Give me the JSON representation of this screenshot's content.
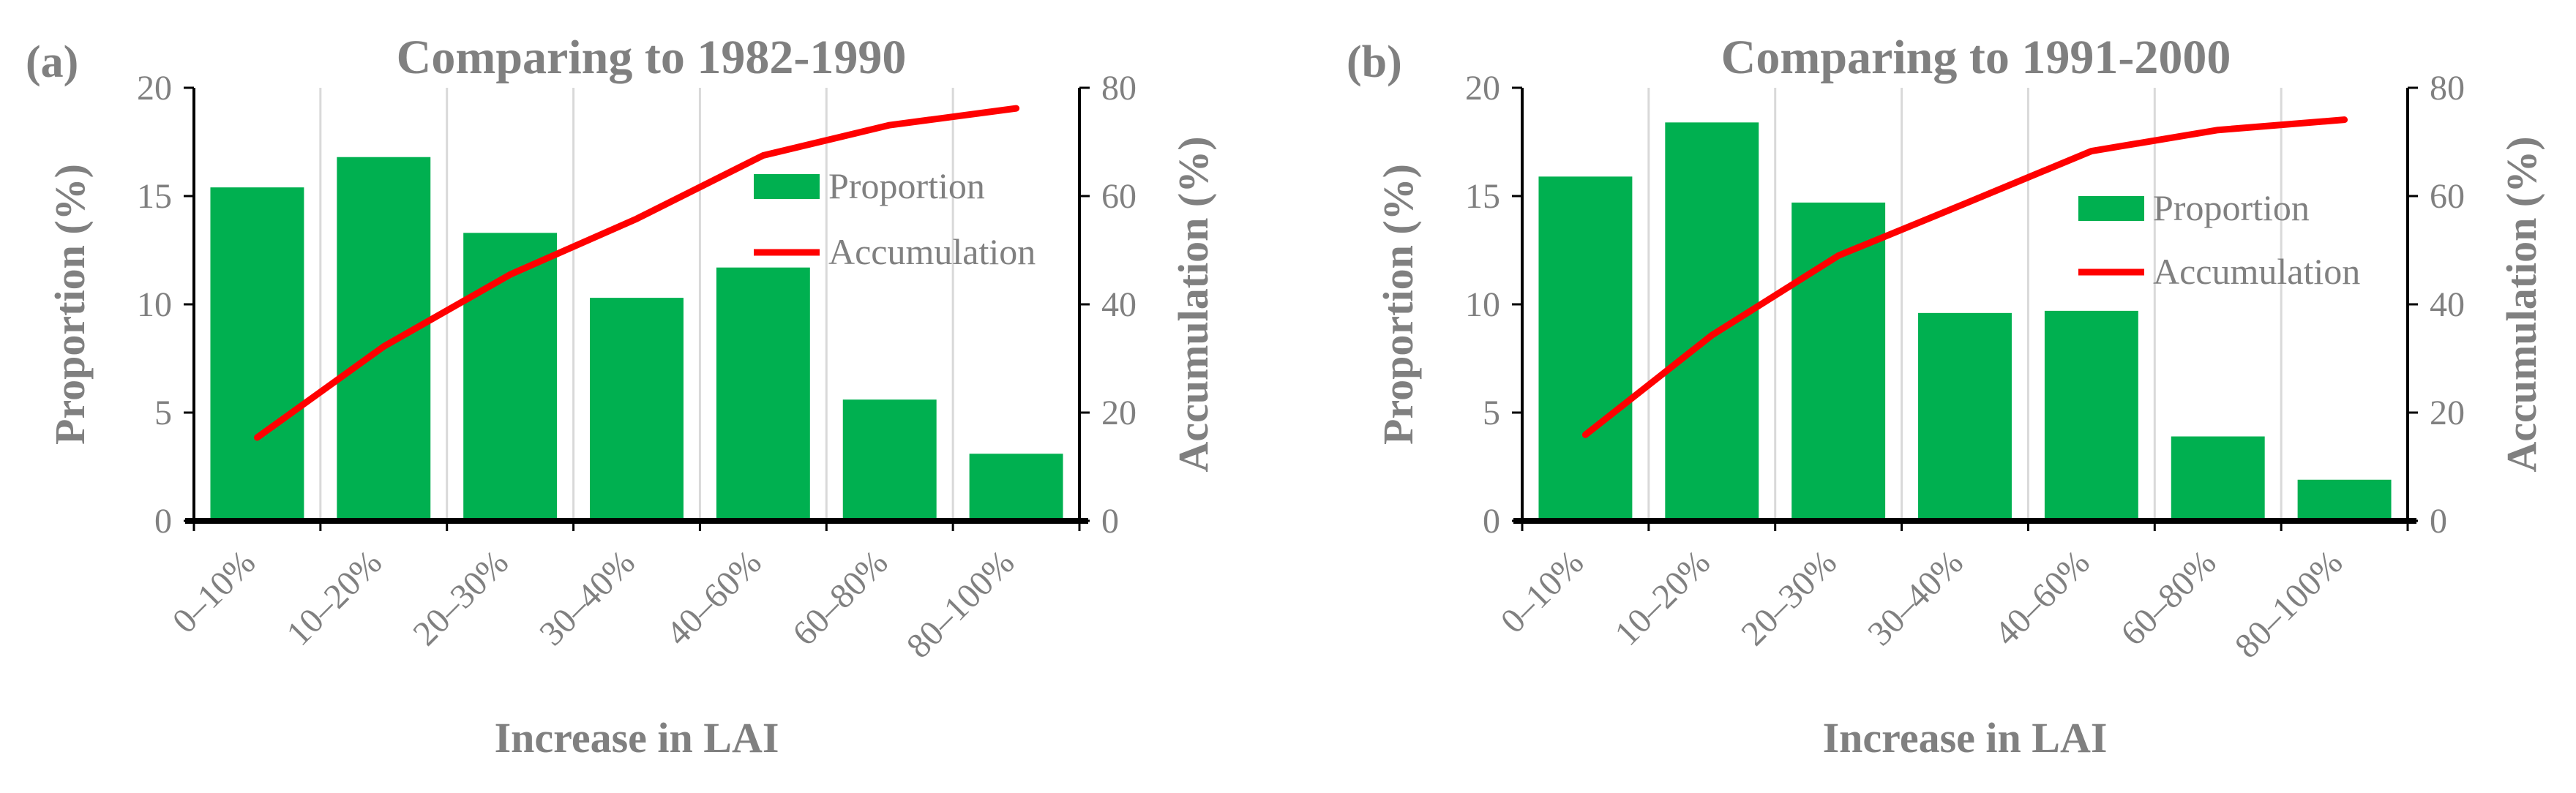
{
  "colors": {
    "bar": "#00b050",
    "line": "#ff0000",
    "text": "#808080",
    "axis": "#000000",
    "grid": "#d9d9d9"
  },
  "chart_data": [
    {
      "type": "bar",
      "panel_label": "(a)",
      "title": "Comparing to 1982-1990",
      "xlabel": "Increase in LAI",
      "ylabel": "Proportion (%)",
      "ylabel_right": "Accumulation (%)",
      "categories": [
        "0–10%",
        "10–20%",
        "20–30%",
        "30–40%",
        "40–60%",
        "60–80%",
        "80–100%"
      ],
      "ylim": [
        0,
        20
      ],
      "yticks": [
        0,
        5,
        10,
        15,
        20
      ],
      "ylim_right": [
        0,
        80
      ],
      "yticks_right": [
        0,
        20,
        40,
        60,
        80
      ],
      "legend_position": "upper-right",
      "series": [
        {
          "name": "Proportion",
          "kind": "bar",
          "axis": "left",
          "values": [
            15.4,
            16.8,
            13.3,
            10.3,
            11.7,
            5.6,
            3.1
          ]
        },
        {
          "name": "Accumulation",
          "kind": "line",
          "axis": "right",
          "values": [
            15.4,
            32.2,
            45.5,
            55.8,
            67.5,
            73.1,
            76.2
          ]
        }
      ]
    },
    {
      "type": "bar",
      "panel_label": "(b)",
      "title": "Comparing to 1991-2000",
      "xlabel": "Increase in LAI",
      "ylabel": "Proportion (%)",
      "ylabel_right": "Accumulation (%)",
      "categories": [
        "0–10%",
        "10–20%",
        "20–30%",
        "30–40%",
        "40–60%",
        "60–80%",
        "80–100%"
      ],
      "ylim": [
        0,
        20
      ],
      "yticks": [
        0,
        5,
        10,
        15,
        20
      ],
      "ylim_right": [
        0,
        80
      ],
      "yticks_right": [
        0,
        20,
        40,
        60,
        80
      ],
      "legend_position": "right",
      "series": [
        {
          "name": "Proportion",
          "kind": "bar",
          "axis": "left",
          "values": [
            15.9,
            18.4,
            14.7,
            9.6,
            9.7,
            3.9,
            1.9
          ]
        },
        {
          "name": "Accumulation",
          "kind": "line",
          "axis": "right",
          "values": [
            15.9,
            34.3,
            49.0,
            58.6,
            68.3,
            72.2,
            74.1
          ]
        }
      ]
    }
  ]
}
